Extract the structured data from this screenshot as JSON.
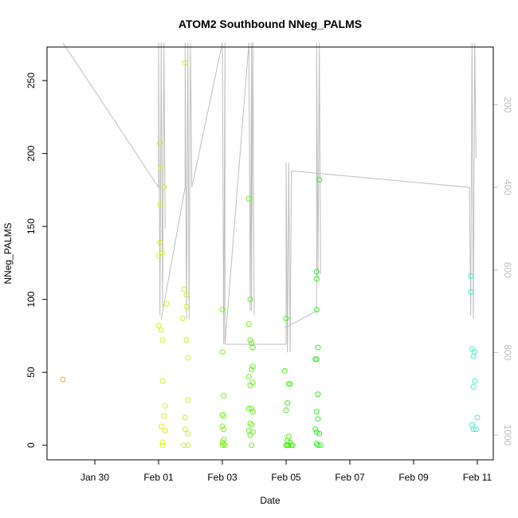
{
  "chart_data": {
    "type": "scatter",
    "title": "ATOM2 Southbound NNeg_PALMS",
    "xlabel": "Date",
    "ylabel": "NNeg_PALMS",
    "x_ticks": [
      "Jan 30",
      "Feb 01",
      "Feb 03",
      "Feb 05",
      "Feb 07",
      "Feb 09",
      "Feb 11"
    ],
    "x_tick_values": [
      "2017-01-30",
      "2017-02-01",
      "2017-02-03",
      "2017-02-05",
      "2017-02-07",
      "2017-02-09",
      "2017-02-11"
    ],
    "xlim": [
      "2017-01-28 12:00",
      "2017-02-11 12:00"
    ],
    "y_ticks": [
      0,
      50,
      100,
      150,
      200,
      250
    ],
    "ylim": [
      -10,
      273
    ],
    "y2_ticks": [
      200,
      400,
      600,
      800,
      1000
    ],
    "y2lim": [
      1060,
      60
    ],
    "y2_reversed": true,
    "grid": false,
    "colors": {
      "axis": "#000000",
      "line": "#bebebe",
      "secondary_axis_text": "#bebebe"
    },
    "points": [
      {
        "x": "2017-01-29 00:00",
        "y": 45,
        "c": "#f0a030"
      },
      {
        "x": "2017-02-01 00:00",
        "y": 82,
        "c": "#d8f018"
      },
      {
        "x": "2017-02-01 00:00",
        "y": 130,
        "c": "#d8f018"
      },
      {
        "x": "2017-02-01 02:00",
        "y": 190,
        "c": "#d8f018"
      },
      {
        "x": "2017-02-01 01:00",
        "y": 207,
        "c": "#d8f018"
      },
      {
        "x": "2017-02-01 01:00",
        "y": 165,
        "c": "#d8f018"
      },
      {
        "x": "2017-02-01 01:00",
        "y": 139,
        "c": "#d8f018"
      },
      {
        "x": "2017-02-01 03:00",
        "y": 132,
        "c": "#d8f018"
      },
      {
        "x": "2017-02-01 04:00",
        "y": 177,
        "c": "#d8f018"
      },
      {
        "x": "2017-02-01 06:00",
        "y": 97,
        "c": "#d8f018"
      },
      {
        "x": "2017-02-01 02:00",
        "y": 79,
        "c": "#d8f018"
      },
      {
        "x": "2017-02-01 03:00",
        "y": 72,
        "c": "#d8f018"
      },
      {
        "x": "2017-02-01 03:00",
        "y": 44,
        "c": "#d8f018"
      },
      {
        "x": "2017-02-01 05:00",
        "y": 27,
        "c": "#d8f018"
      },
      {
        "x": "2017-02-01 04:00",
        "y": 20,
        "c": "#d8f018"
      },
      {
        "x": "2017-02-01 02:00",
        "y": 13,
        "c": "#d8f018"
      },
      {
        "x": "2017-02-01 05:00",
        "y": 10,
        "c": "#d8f018"
      },
      {
        "x": "2017-02-01 03:00",
        "y": 2,
        "c": "#d8f018"
      },
      {
        "x": "2017-02-01 03:00",
        "y": 0,
        "c": "#d8f018"
      },
      {
        "x": "2017-02-01 20:00",
        "y": 262,
        "c": "#c8f020"
      },
      {
        "x": "2017-02-01 19:00",
        "y": 107,
        "c": "#c8f020"
      },
      {
        "x": "2017-02-01 21:00",
        "y": 103,
        "c": "#c8f020"
      },
      {
        "x": "2017-02-01 21:00",
        "y": 95,
        "c": "#c8f020"
      },
      {
        "x": "2017-02-01 18:00",
        "y": 87,
        "c": "#c8f020"
      },
      {
        "x": "2017-02-01 21:00",
        "y": 72,
        "c": "#c8f020"
      },
      {
        "x": "2017-02-01 22:00",
        "y": 60,
        "c": "#c8f020"
      },
      {
        "x": "2017-02-01 22:00",
        "y": 31,
        "c": "#c8f020"
      },
      {
        "x": "2017-02-01 20:00",
        "y": 19,
        "c": "#c8f020"
      },
      {
        "x": "2017-02-01 20:00",
        "y": 11,
        "c": "#c8f020"
      },
      {
        "x": "2017-02-01 22:00",
        "y": 8,
        "c": "#c8f020"
      },
      {
        "x": "2017-02-01 19:00",
        "y": 0,
        "c": "#c8f020"
      },
      {
        "x": "2017-02-01 22:00",
        "y": 0,
        "c": "#c8f020"
      },
      {
        "x": "2017-02-03 00:00",
        "y": 93,
        "c": "#80f018"
      },
      {
        "x": "2017-02-03 00:00",
        "y": 64,
        "c": "#80f018"
      },
      {
        "x": "2017-02-03 01:00",
        "y": 34,
        "c": "#80f018"
      },
      {
        "x": "2017-02-03 00:00",
        "y": 21,
        "c": "#80f018"
      },
      {
        "x": "2017-02-03 01:00",
        "y": 20,
        "c": "#80f018"
      },
      {
        "x": "2017-02-03 00:00",
        "y": 13,
        "c": "#80f018"
      },
      {
        "x": "2017-02-03 01:00",
        "y": 11,
        "c": "#80f018"
      },
      {
        "x": "2017-02-03 01:00",
        "y": 4,
        "c": "#80f018"
      },
      {
        "x": "2017-02-03 00:00",
        "y": 2,
        "c": "#80f018"
      },
      {
        "x": "2017-02-03 01:00",
        "y": 1,
        "c": "#80f018"
      },
      {
        "x": "2017-02-03 00:00",
        "y": 0,
        "c": "#80f018"
      },
      {
        "x": "2017-02-03 02:00",
        "y": 0,
        "c": "#80f018"
      },
      {
        "x": "2017-02-03 20:00",
        "y": 169,
        "c": "#68f020"
      },
      {
        "x": "2017-02-03 21:00",
        "y": 100,
        "c": "#68f020"
      },
      {
        "x": "2017-02-03 20:00",
        "y": 83,
        "c": "#68f020"
      },
      {
        "x": "2017-02-03 21:00",
        "y": 72,
        "c": "#68f020"
      },
      {
        "x": "2017-02-03 22:00",
        "y": 70,
        "c": "#68f020"
      },
      {
        "x": "2017-02-03 23:00",
        "y": 67,
        "c": "#68f020"
      },
      {
        "x": "2017-02-03 23:00",
        "y": 54,
        "c": "#68f020"
      },
      {
        "x": "2017-02-03 22:00",
        "y": 52,
        "c": "#68f020"
      },
      {
        "x": "2017-02-03 20:00",
        "y": 47,
        "c": "#68f020"
      },
      {
        "x": "2017-02-03 23:00",
        "y": 43,
        "c": "#68f020"
      },
      {
        "x": "2017-02-03 21:00",
        "y": 41,
        "c": "#68f020"
      },
      {
        "x": "2017-02-03 20:00",
        "y": 25,
        "c": "#68f020"
      },
      {
        "x": "2017-02-03 22:00",
        "y": 25,
        "c": "#68f020"
      },
      {
        "x": "2017-02-03 23:00",
        "y": 23,
        "c": "#68f020"
      },
      {
        "x": "2017-02-03 21:00",
        "y": 15,
        "c": "#68f020"
      },
      {
        "x": "2017-02-03 22:00",
        "y": 14,
        "c": "#68f020"
      },
      {
        "x": "2017-02-03 20:00",
        "y": 10,
        "c": "#68f020"
      },
      {
        "x": "2017-02-03 23:00",
        "y": 9,
        "c": "#68f020"
      },
      {
        "x": "2017-02-03 21:00",
        "y": 7,
        "c": "#68f020"
      },
      {
        "x": "2017-02-03 22:00",
        "y": 0,
        "c": "#68f020"
      },
      {
        "x": "2017-02-05 00:00",
        "y": 87,
        "c": "#48f018"
      },
      {
        "x": "2017-02-04 23:00",
        "y": 51,
        "c": "#48f018"
      },
      {
        "x": "2017-02-05 02:00",
        "y": 42,
        "c": "#48f018"
      },
      {
        "x": "2017-02-05 03:00",
        "y": 42,
        "c": "#48f018"
      },
      {
        "x": "2017-02-05 01:00",
        "y": 29,
        "c": "#48f018"
      },
      {
        "x": "2017-02-05 00:00",
        "y": 24,
        "c": "#48f018"
      },
      {
        "x": "2017-02-05 02:00",
        "y": 6,
        "c": "#48f018"
      },
      {
        "x": "2017-02-05 01:00",
        "y": 3,
        "c": "#48f018"
      },
      {
        "x": "2017-02-05 03:00",
        "y": 2,
        "c": "#48f018"
      },
      {
        "x": "2017-02-05 00:00",
        "y": 0,
        "c": "#48f018"
      },
      {
        "x": "2017-02-05 01:00",
        "y": 0,
        "c": "#48f018"
      },
      {
        "x": "2017-02-05 02:00",
        "y": 0,
        "c": "#48f018"
      },
      {
        "x": "2017-02-05 04:00",
        "y": 0,
        "c": "#48f018"
      },
      {
        "x": "2017-02-05 05:00",
        "y": 0,
        "c": "#48f018"
      },
      {
        "x": "2017-02-06 01:00",
        "y": 182,
        "c": "#30f020"
      },
      {
        "x": "2017-02-05 23:00",
        "y": 119,
        "c": "#30f020"
      },
      {
        "x": "2017-02-05 23:00",
        "y": 114,
        "c": "#30f020"
      },
      {
        "x": "2017-02-05 23:00",
        "y": 93,
        "c": "#30f020"
      },
      {
        "x": "2017-02-06 00:00",
        "y": 67,
        "c": "#30f020"
      },
      {
        "x": "2017-02-05 22:00",
        "y": 59,
        "c": "#30f020"
      },
      {
        "x": "2017-02-05 23:00",
        "y": 59,
        "c": "#30f020"
      },
      {
        "x": "2017-02-06 00:00",
        "y": 35,
        "c": "#30f020"
      },
      {
        "x": "2017-02-05 23:00",
        "y": 23,
        "c": "#30f020"
      },
      {
        "x": "2017-02-06 00:00",
        "y": 18,
        "c": "#30f020"
      },
      {
        "x": "2017-02-05 22:00",
        "y": 11,
        "c": "#30f020"
      },
      {
        "x": "2017-02-05 23:00",
        "y": 9,
        "c": "#30f020"
      },
      {
        "x": "2017-02-06 01:00",
        "y": 8,
        "c": "#30f020"
      },
      {
        "x": "2017-02-05 23:00",
        "y": 1,
        "c": "#30f020"
      },
      {
        "x": "2017-02-06 00:00",
        "y": 0,
        "c": "#30f020"
      },
      {
        "x": "2017-02-06 02:00",
        "y": 0,
        "c": "#30f020"
      },
      {
        "x": "2017-02-10 19:00",
        "y": 116,
        "c": "#40f0d0"
      },
      {
        "x": "2017-02-10 19:00",
        "y": 105,
        "c": "#40f0d0"
      },
      {
        "x": "2017-02-10 20:00",
        "y": 66,
        "c": "#40f0d0"
      },
      {
        "x": "2017-02-10 22:00",
        "y": 64,
        "c": "#40f0d0"
      },
      {
        "x": "2017-02-10 21:00",
        "y": 61,
        "c": "#40f0d0"
      },
      {
        "x": "2017-02-10 22:00",
        "y": 44,
        "c": "#40f0d0"
      },
      {
        "x": "2017-02-10 21:00",
        "y": 40,
        "c": "#40f0d0"
      },
      {
        "x": "2017-02-11 00:00",
        "y": 19,
        "c": "#40f0d0"
      },
      {
        "x": "2017-02-10 20:00",
        "y": 14,
        "c": "#40f0d0"
      },
      {
        "x": "2017-02-10 21:00",
        "y": 11,
        "c": "#40f0d0"
      },
      {
        "x": "2017-02-10 23:00",
        "y": 11,
        "c": "#40f0d0"
      }
    ],
    "line_segments": [
      [
        [
          "2017-01-29 00:00",
          50
        ],
        [
          "2017-02-01 00:00",
          400
        ],
        [
          "2017-02-01 00:00",
          50
        ],
        [
          "2017-02-01 01:00",
          710
        ],
        [
          "2017-02-01 02:00",
          50
        ],
        [
          "2017-02-01 03:00",
          690
        ],
        [
          "2017-02-01 04:00",
          50
        ],
        [
          "2017-02-01 05:00",
          500
        ]
      ],
      [
        [
          "2017-02-01 02:00",
          720
        ],
        [
          "2017-02-01 20:00",
          400
        ],
        [
          "2017-02-01 20:00",
          50
        ],
        [
          "2017-02-01 21:00",
          720
        ],
        [
          "2017-02-01 22:00",
          50
        ],
        [
          "2017-02-01 23:00",
          720
        ],
        [
          "2017-02-02 00:00",
          50
        ],
        [
          "2017-02-02 01:00",
          400
        ],
        [
          "2017-02-03 00:00",
          50
        ],
        [
          "2017-02-03 01:00",
          780
        ],
        [
          "2017-02-03 02:00",
          50
        ],
        [
          "2017-02-03 02:00",
          780
        ],
        [
          "2017-02-03 20:00",
          50
        ],
        [
          "2017-02-03 21:00",
          700
        ],
        [
          "2017-02-03 22:00",
          50
        ],
        [
          "2017-02-03 22:00",
          700
        ],
        [
          "2017-02-03 23:00",
          50
        ],
        [
          "2017-02-04 00:00",
          710
        ]
      ],
      [
        [
          "2017-02-03 02:00",
          780
        ],
        [
          "2017-02-05 00:00",
          780
        ],
        [
          "2017-02-05 00:00",
          340
        ],
        [
          "2017-02-05 01:00",
          800
        ],
        [
          "2017-02-05 02:00",
          340
        ],
        [
          "2017-02-05 03:00",
          800
        ],
        [
          "2017-02-05 04:00",
          360
        ],
        [
          "2017-02-10 18:00",
          400
        ],
        [
          "2017-02-10 19:00",
          710
        ],
        [
          "2017-02-10 20:00",
          50
        ],
        [
          "2017-02-10 21:00",
          720
        ],
        [
          "2017-02-10 22:00",
          50
        ],
        [
          "2017-02-10 23:00",
          330
        ]
      ],
      [
        [
          "2017-02-04 23:00",
          740
        ],
        [
          "2017-02-05 23:00",
          700
        ],
        [
          "2017-02-05 23:00",
          50
        ],
        [
          "2017-02-06 00:00",
          620
        ],
        [
          "2017-02-06 01:00",
          50
        ],
        [
          "2017-02-06 02:00",
          610
        ]
      ]
    ]
  }
}
